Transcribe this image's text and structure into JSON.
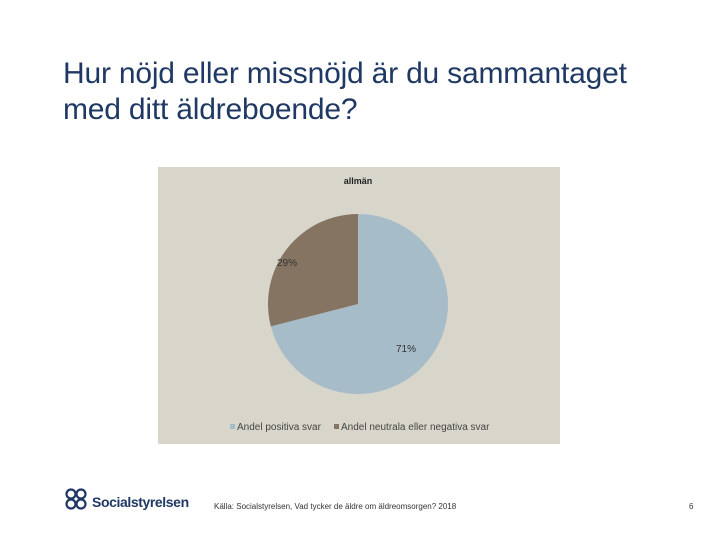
{
  "slide": {
    "title": "Hur nöjd eller missnöjd är du sammantaget med ditt äldreboende?",
    "source": "Källa: Socialstyrelsen, Vad tycker de äldre om äldreomsorgen? 2018",
    "page_number": "6",
    "logo_text": "Socialstyrelsen"
  },
  "colors": {
    "title": "#1f3864",
    "panel_background": "#d8d6cb",
    "positive": "#a7bcc9",
    "neutral_negative": "#867463"
  },
  "chart_data": {
    "type": "pie",
    "title": "allmän",
    "categories": [
      "Andel positiva svar",
      "Andel neutrala eller negativa svar"
    ],
    "values": [
      71,
      29
    ],
    "labels": [
      "71%",
      "29%"
    ],
    "colors": [
      "#a7bcc9",
      "#867463"
    ],
    "legend_position": "bottom"
  }
}
